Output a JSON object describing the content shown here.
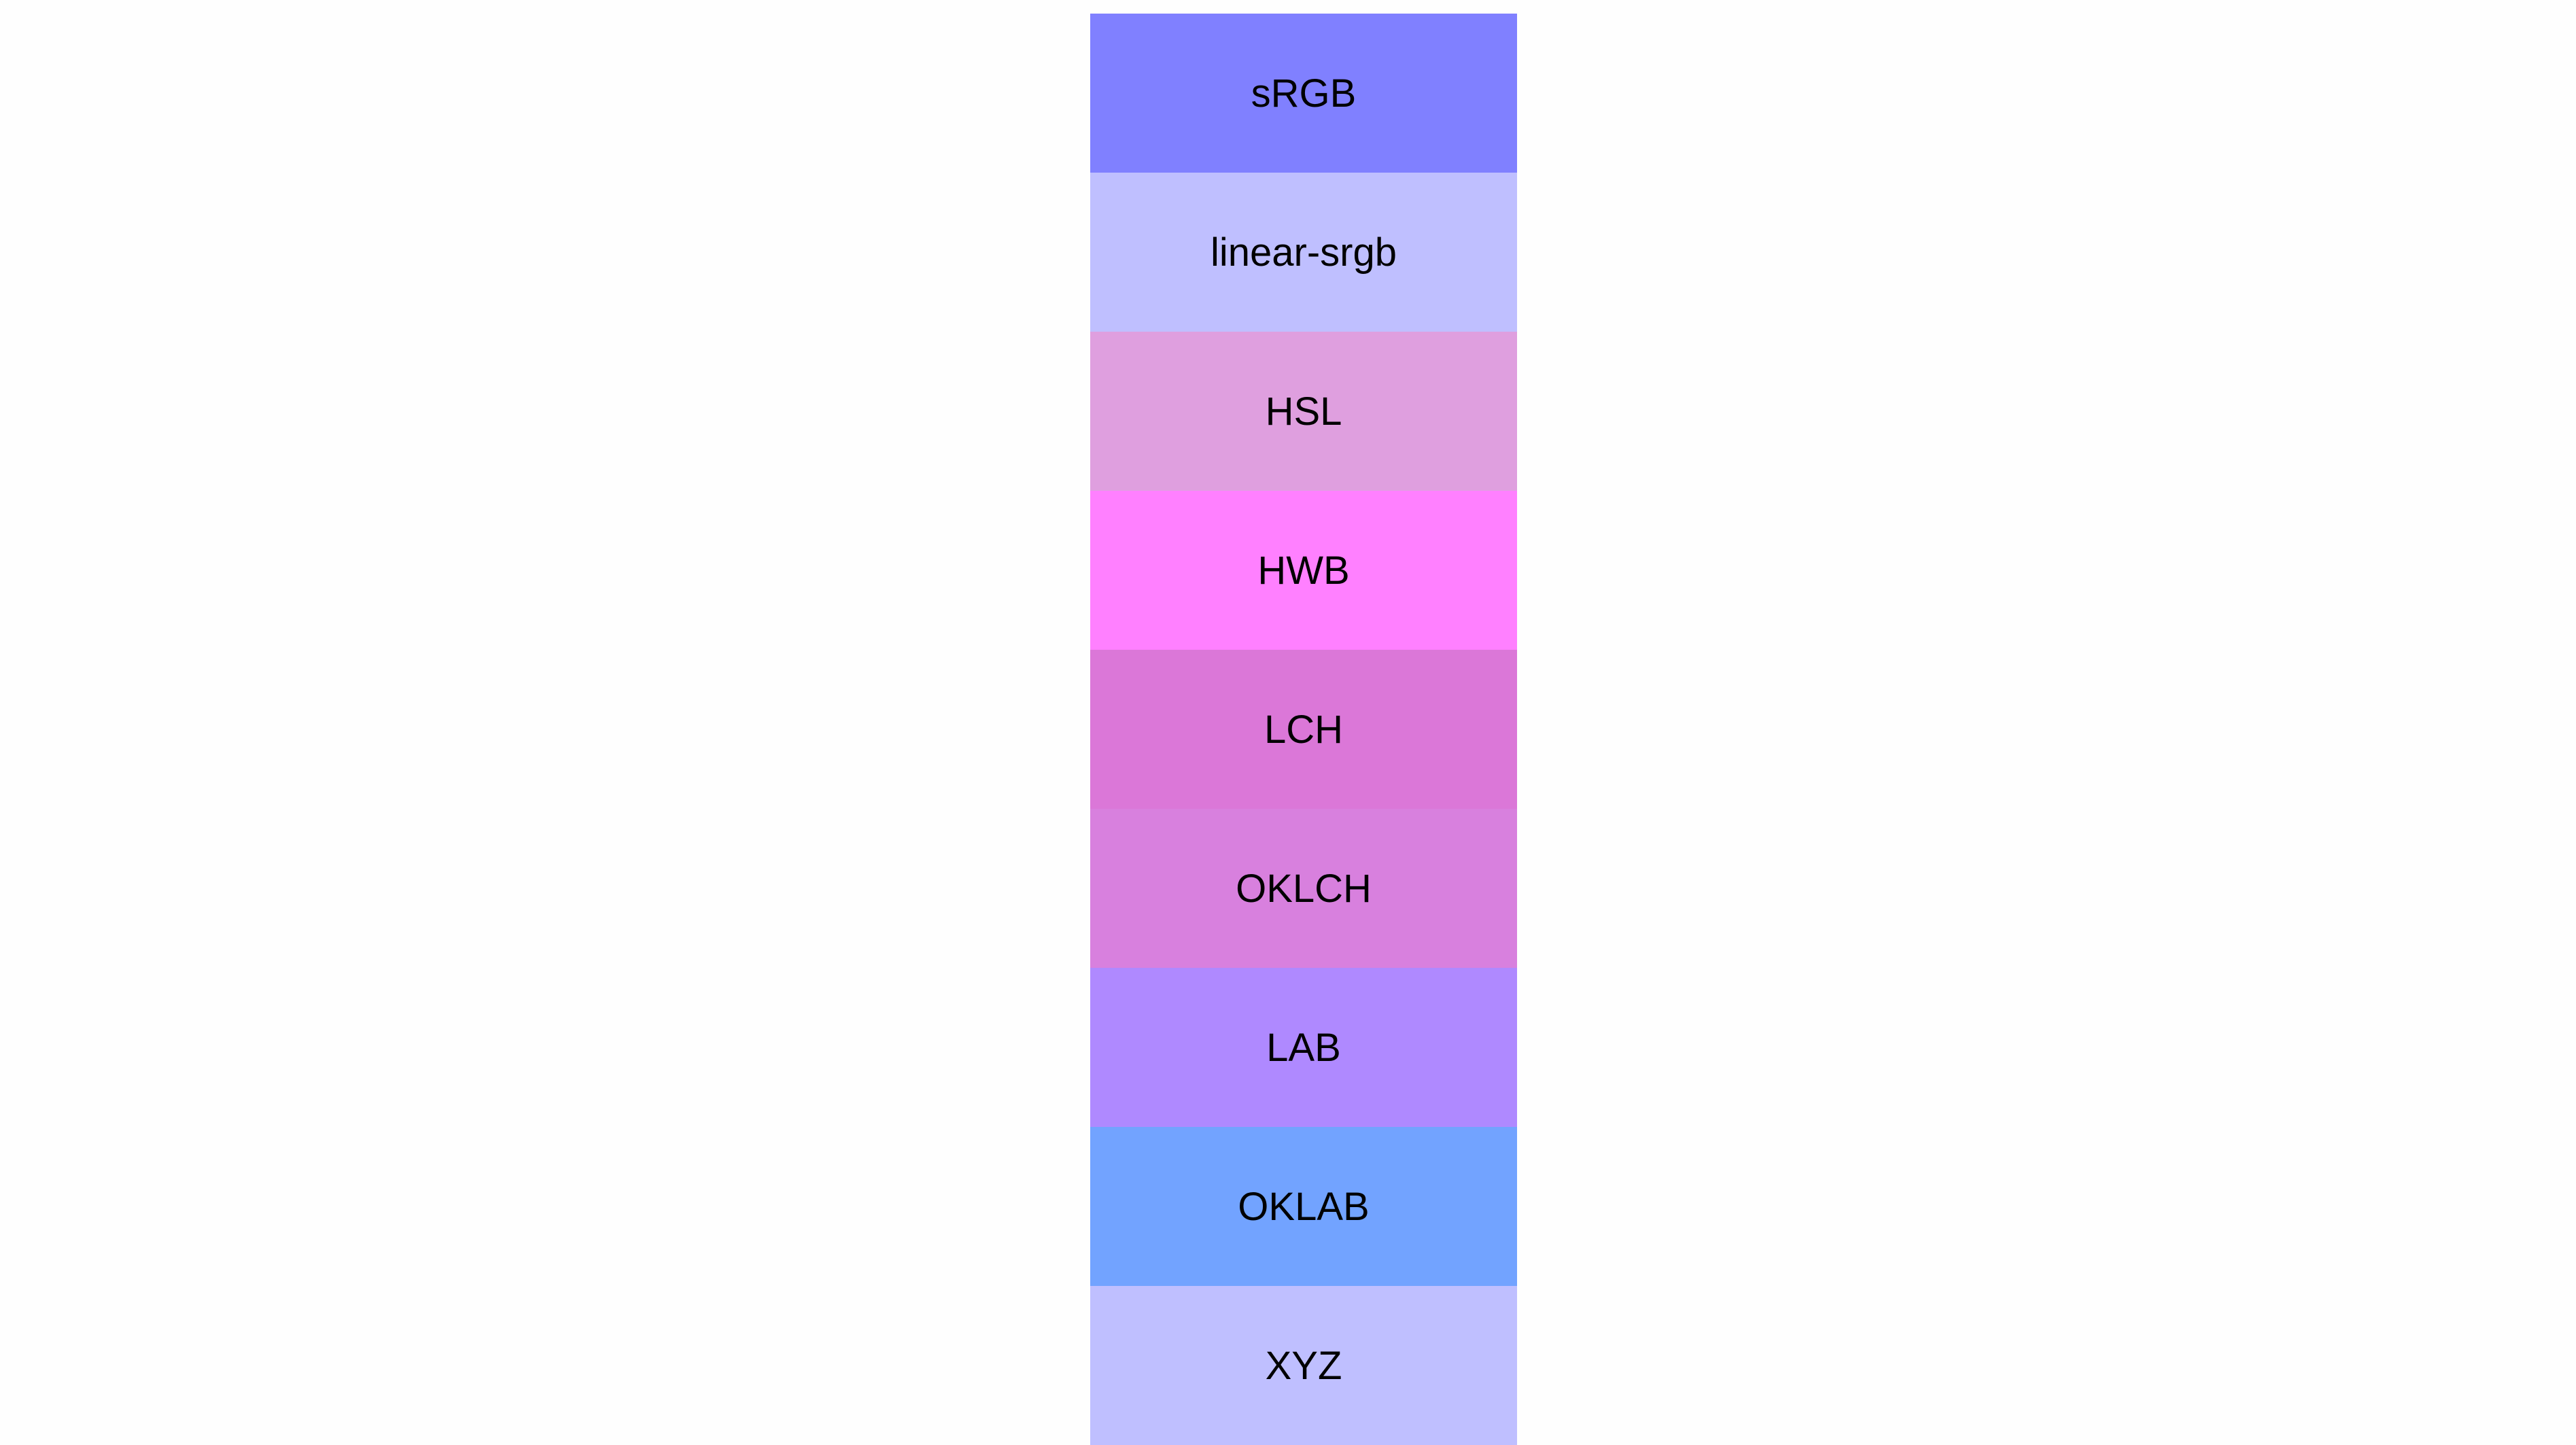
{
  "swatches": [
    {
      "label": "sRGB",
      "color": "#8080ff"
    },
    {
      "label": "linear-srgb",
      "color": "#bfbfff"
    },
    {
      "label": "HSL",
      "color": "#df9fdf"
    },
    {
      "label": "HWB",
      "color": "#ff80ff"
    },
    {
      "label": "LCH",
      "color": "#db77d8"
    },
    {
      "label": "OKLCH",
      "color": "#d880de"
    },
    {
      "label": "LAB",
      "color": "#af89ff"
    },
    {
      "label": "OKLAB",
      "color": "#72a3ff"
    },
    {
      "label": "XYZ",
      "color": "#bfbfff"
    }
  ]
}
